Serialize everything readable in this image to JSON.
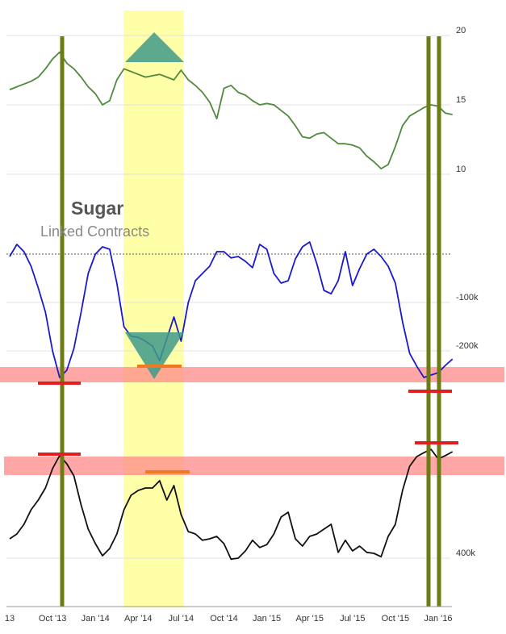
{
  "chart_data": {
    "type": "line",
    "title": "Sugar",
    "subtitle": "Linked Contracts",
    "categories": [
      "13",
      null,
      null,
      null,
      null,
      null,
      "Oct '13",
      null,
      null,
      null,
      null,
      null,
      "Jan '14",
      null,
      null,
      null,
      null,
      null,
      "Apr '14",
      null,
      null,
      null,
      null,
      null,
      "Jul '14",
      null,
      null,
      null,
      null,
      null,
      "Oct '14",
      null,
      null,
      null,
      null,
      null,
      "Jan '15",
      null,
      null,
      null,
      null,
      null,
      "Apr '15",
      null,
      null,
      null,
      null,
      null,
      "Jul '15",
      null,
      null,
      null,
      null,
      null,
      "Oct '15",
      null,
      null,
      null,
      null,
      null,
      "Jan '16",
      null,
      null
    ],
    "grid": true,
    "panels": [
      {
        "ylim": [
          9.5,
          20.5
        ],
        "yticks": [
          10,
          15,
          20
        ],
        "series": [
          {
            "color": "#4f8a3c",
            "values": [
              16.1,
              16.3,
              16.5,
              16.7,
              17.0,
              17.6,
              18.3,
              18.8,
              18.0,
              17.6,
              17.0,
              16.3,
              15.8,
              15.0,
              15.3,
              16.8,
              17.6,
              17.4,
              17.2,
              17.0,
              17.1,
              17.2,
              17.0,
              16.8,
              17.5,
              16.8,
              16.4,
              15.9,
              15.2,
              14.0,
              16.2,
              16.4,
              15.9,
              15.7,
              15.3,
              15.0,
              15.1,
              15.0,
              14.6,
              14.2,
              13.5,
              12.7,
              12.6,
              12.9,
              13.0,
              12.6,
              12.2,
              12.2,
              12.1,
              11.9,
              11.3,
              10.9,
              10.4,
              10.7,
              12.0,
              13.5,
              14.2,
              14.5,
              14.8,
              15.0,
              14.9,
              14.4,
              14.3
            ]
          }
        ]
      },
      {
        "ylim": [
          -275000,
          40000
        ],
        "yticks": [
          {
            "value": -100000,
            "label": "-100k"
          },
          {
            "value": -200000,
            "label": "-200k"
          }
        ],
        "series": [
          {
            "color": "#1a1acc",
            "values": [
              -5000,
              20000,
              5000,
              -25000,
              -70000,
              -120000,
              -200000,
              -255000,
              -240000,
              -195000,
              -120000,
              -40000,
              0,
              15000,
              10000,
              -60000,
              -150000,
              -170000,
              -172000,
              -180000,
              -190000,
              -220000,
              -175000,
              -130000,
              -180000,
              -100000,
              -55000,
              -40000,
              -25000,
              5000,
              5000,
              -8000,
              -5000,
              -15000,
              -28000,
              20000,
              10000,
              -40000,
              -60000,
              -55000,
              -10000,
              15000,
              25000,
              -20000,
              -75000,
              -82000,
              -55000,
              5000,
              -65000,
              -30000,
              0,
              10000,
              -5000,
              -25000,
              -60000,
              -140000,
              -205000,
              -232000,
              -255000,
              -250000,
              -245000,
              -230000,
              -217000
            ]
          }
        ]
      },
      {
        "ylim": [
          300000,
          650000
        ],
        "yticks": [
          {
            "value": 400000,
            "label": "400k"
          }
        ],
        "series": [
          {
            "color": "#111111",
            "values": [
              440000,
              450000,
              470000,
              500000,
              520000,
              545000,
              585000,
              612000,
              595000,
              570000,
              510000,
              460000,
              430000,
              405000,
              420000,
              450000,
              500000,
              530000,
              540000,
              545000,
              545000,
              560000,
              520000,
              550000,
              490000,
              455000,
              450000,
              437000,
              440000,
              445000,
              430000,
              398000,
              400000,
              415000,
              437000,
              422000,
              428000,
              450000,
              485000,
              495000,
              440000,
              425000,
              445000,
              450000,
              460000,
              470000,
              412000,
              437000,
              415000,
              425000,
              412000,
              410000,
              403000,
              445000,
              470000,
              540000,
              590000,
              610000,
              618000,
              625000,
              605000,
              612000,
              620000
            ]
          }
        ]
      }
    ]
  }
}
